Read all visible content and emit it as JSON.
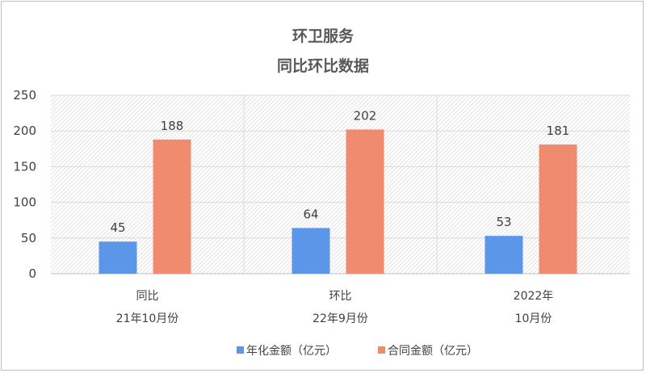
{
  "chart_data": {
    "type": "bar",
    "title": "环卫服务",
    "subtitle": "同比环比数据",
    "categories": [
      [
        "同比",
        "21年10月份"
      ],
      [
        "环比",
        "22年9月份"
      ],
      [
        "2022年",
        "10月份"
      ]
    ],
    "series": [
      {
        "name": "年化金额（亿元）",
        "values": [
          45,
          64,
          53
        ],
        "color": "#5b96e8"
      },
      {
        "name": "合同金额（亿元）",
        "values": [
          188,
          202,
          181
        ],
        "color": "#f08b6f"
      }
    ],
    "ylim": [
      0,
      250
    ],
    "yticks": [
      0,
      50,
      100,
      150,
      200,
      250
    ],
    "grid": true,
    "legend": "bottom"
  }
}
